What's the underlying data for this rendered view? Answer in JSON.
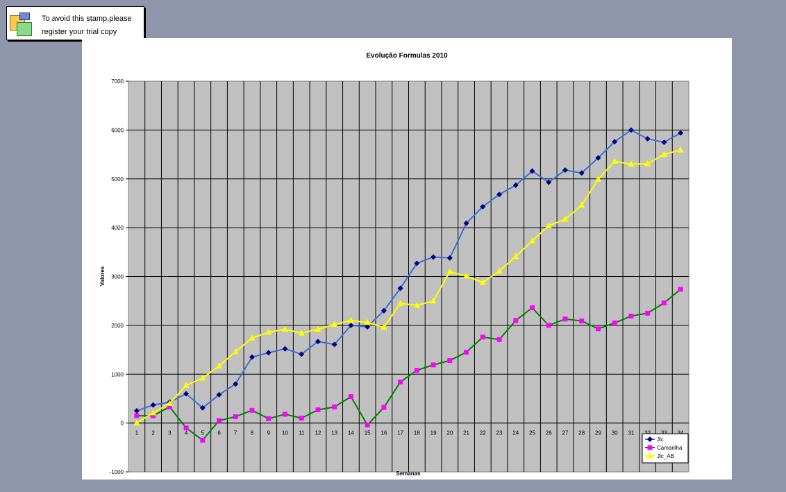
{
  "stamp": {
    "line1": "To avoid this stamp,please",
    "line2": "register your trial copy"
  },
  "chart_data": {
    "type": "line",
    "title": "Evolução Formulas 2010",
    "xlabel": "Semanas",
    "ylabel": "Valores",
    "ylim": [
      -1000,
      7000
    ],
    "yticks": [
      -1000,
      0,
      1000,
      2000,
      3000,
      4000,
      5000,
      6000,
      7000
    ],
    "categories": [
      "1",
      "2",
      "3",
      "4",
      "5",
      "6",
      "7",
      "8",
      "9",
      "10",
      "11",
      "12",
      "13",
      "14",
      "15",
      "16",
      "17",
      "18",
      "19",
      "20",
      "21",
      "22",
      "23",
      "24",
      "25",
      "26",
      "27",
      "28",
      "29",
      "30",
      "31",
      "32",
      "33",
      "34"
    ],
    "grid": true,
    "legend_position": "bottom-right",
    "plot_background": "#c0c0c0",
    "series": [
      {
        "name": "Jlc",
        "color": "#3a6fd8",
        "marker": "diamond",
        "marker_color": "#000080",
        "values": [
          250,
          370,
          430,
          600,
          310,
          580,
          800,
          1350,
          1440,
          1520,
          1410,
          1670,
          1610,
          2000,
          1970,
          2300,
          2760,
          3270,
          3400,
          3380,
          4090,
          4430,
          4680,
          4870,
          5160,
          4930,
          5180,
          5120,
          5430,
          5760,
          6000,
          5820,
          5750,
          5940
        ]
      },
      {
        "name": "Camarilha",
        "color": "#008000",
        "marker": "square",
        "marker_color": "#ff00ff",
        "values": [
          150,
          150,
          330,
          -100,
          -350,
          50,
          130,
          260,
          90,
          180,
          100,
          270,
          330,
          540,
          -40,
          320,
          840,
          1080,
          1190,
          1280,
          1450,
          1760,
          1710,
          2100,
          2360,
          2000,
          2130,
          2090,
          1930,
          2050,
          2190,
          2250,
          2460,
          2740
        ]
      },
      {
        "name": "Jlc_AB",
        "color": "#ffff00",
        "marker": "triangle",
        "marker_color": "#ffff00",
        "values": [
          0,
          210,
          400,
          770,
          920,
          1170,
          1460,
          1740,
          1860,
          1920,
          1840,
          1920,
          2020,
          2100,
          2060,
          1960,
          2450,
          2410,
          2500,
          3100,
          3010,
          2880,
          3110,
          3410,
          3730,
          4040,
          4170,
          4460,
          4990,
          5360,
          5300,
          5310,
          5500,
          5590
        ]
      }
    ]
  }
}
